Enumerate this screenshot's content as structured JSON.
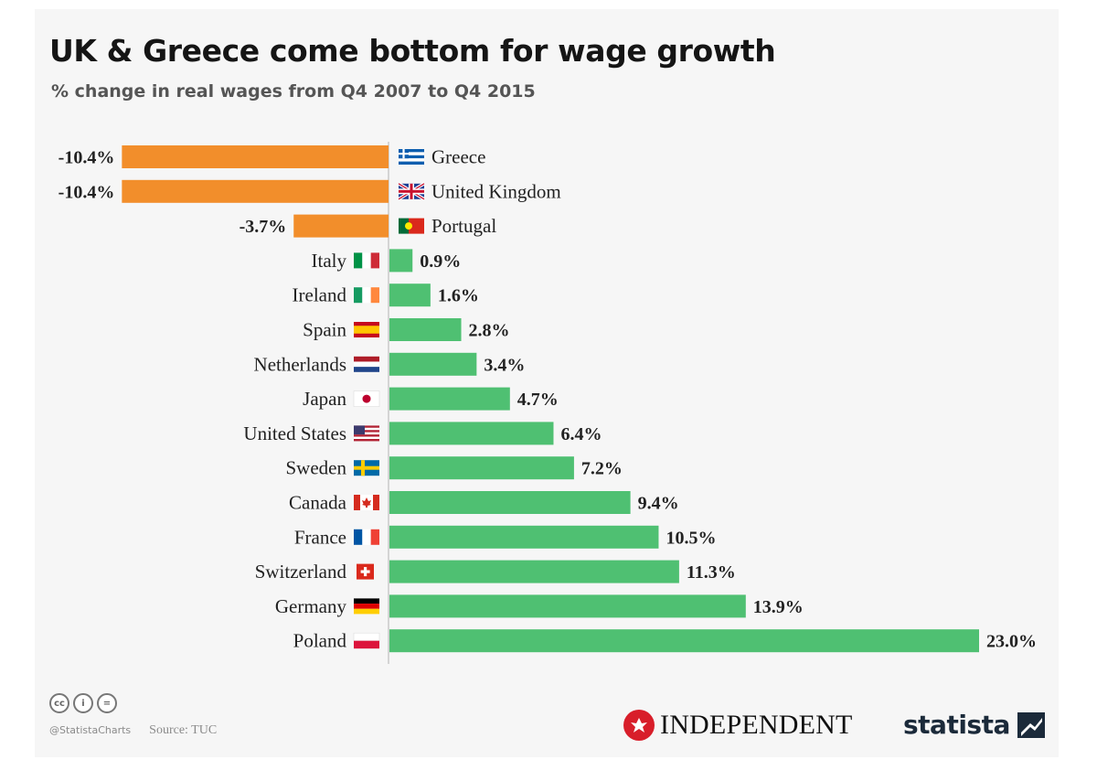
{
  "title": "UK & Greece come bottom for wage growth",
  "subtitle": "% change in real wages from Q4 2007 to Q4 2015",
  "chart_data": {
    "type": "bar",
    "orientation": "horizontal",
    "unit": "%",
    "categories": [
      "Greece",
      "United Kingdom",
      "Portugal",
      "Italy",
      "Ireland",
      "Spain",
      "Netherlands",
      "Japan",
      "United States",
      "Sweden",
      "Canada",
      "France",
      "Switzerland",
      "Germany",
      "Poland"
    ],
    "values": [
      -10.4,
      -10.4,
      -3.7,
      0.9,
      1.6,
      2.8,
      3.4,
      4.7,
      6.4,
      7.2,
      9.4,
      10.5,
      11.3,
      13.9,
      23.0
    ],
    "value_labels": [
      "-10.4%",
      "-10.4%",
      "-3.7%",
      "0.9%",
      "1.6%",
      "2.8%",
      "3.4%",
      "4.7%",
      "6.4%",
      "7.2%",
      "9.4%",
      "10.5%",
      "11.3%",
      "13.9%",
      "23.0%"
    ],
    "xlim": [
      -10.4,
      23.0
    ],
    "grid": false,
    "legend": "none",
    "colors": {
      "negative": "#f28e2b",
      "positive": "#4fc072",
      "axis": "#c8c8c8"
    },
    "flags": [
      "greece-flag",
      "uk-flag",
      "portugal-flag",
      "italy-flag",
      "ireland-flag",
      "spain-flag",
      "netherlands-flag",
      "japan-flag",
      "usa-flag",
      "sweden-flag",
      "canada-flag",
      "france-flag",
      "switzerland-flag",
      "germany-flag",
      "poland-flag"
    ]
  },
  "footer": {
    "handle": "@StatistaCharts",
    "source": "Source: TUC",
    "license_icons": [
      "cc-icon",
      "by-icon",
      "nd-icon"
    ],
    "cc_glyphs": [
      "cc",
      "i",
      "="
    ],
    "independent_logo_text": "INDEPENDENT",
    "statista_logo_text": "statista"
  }
}
